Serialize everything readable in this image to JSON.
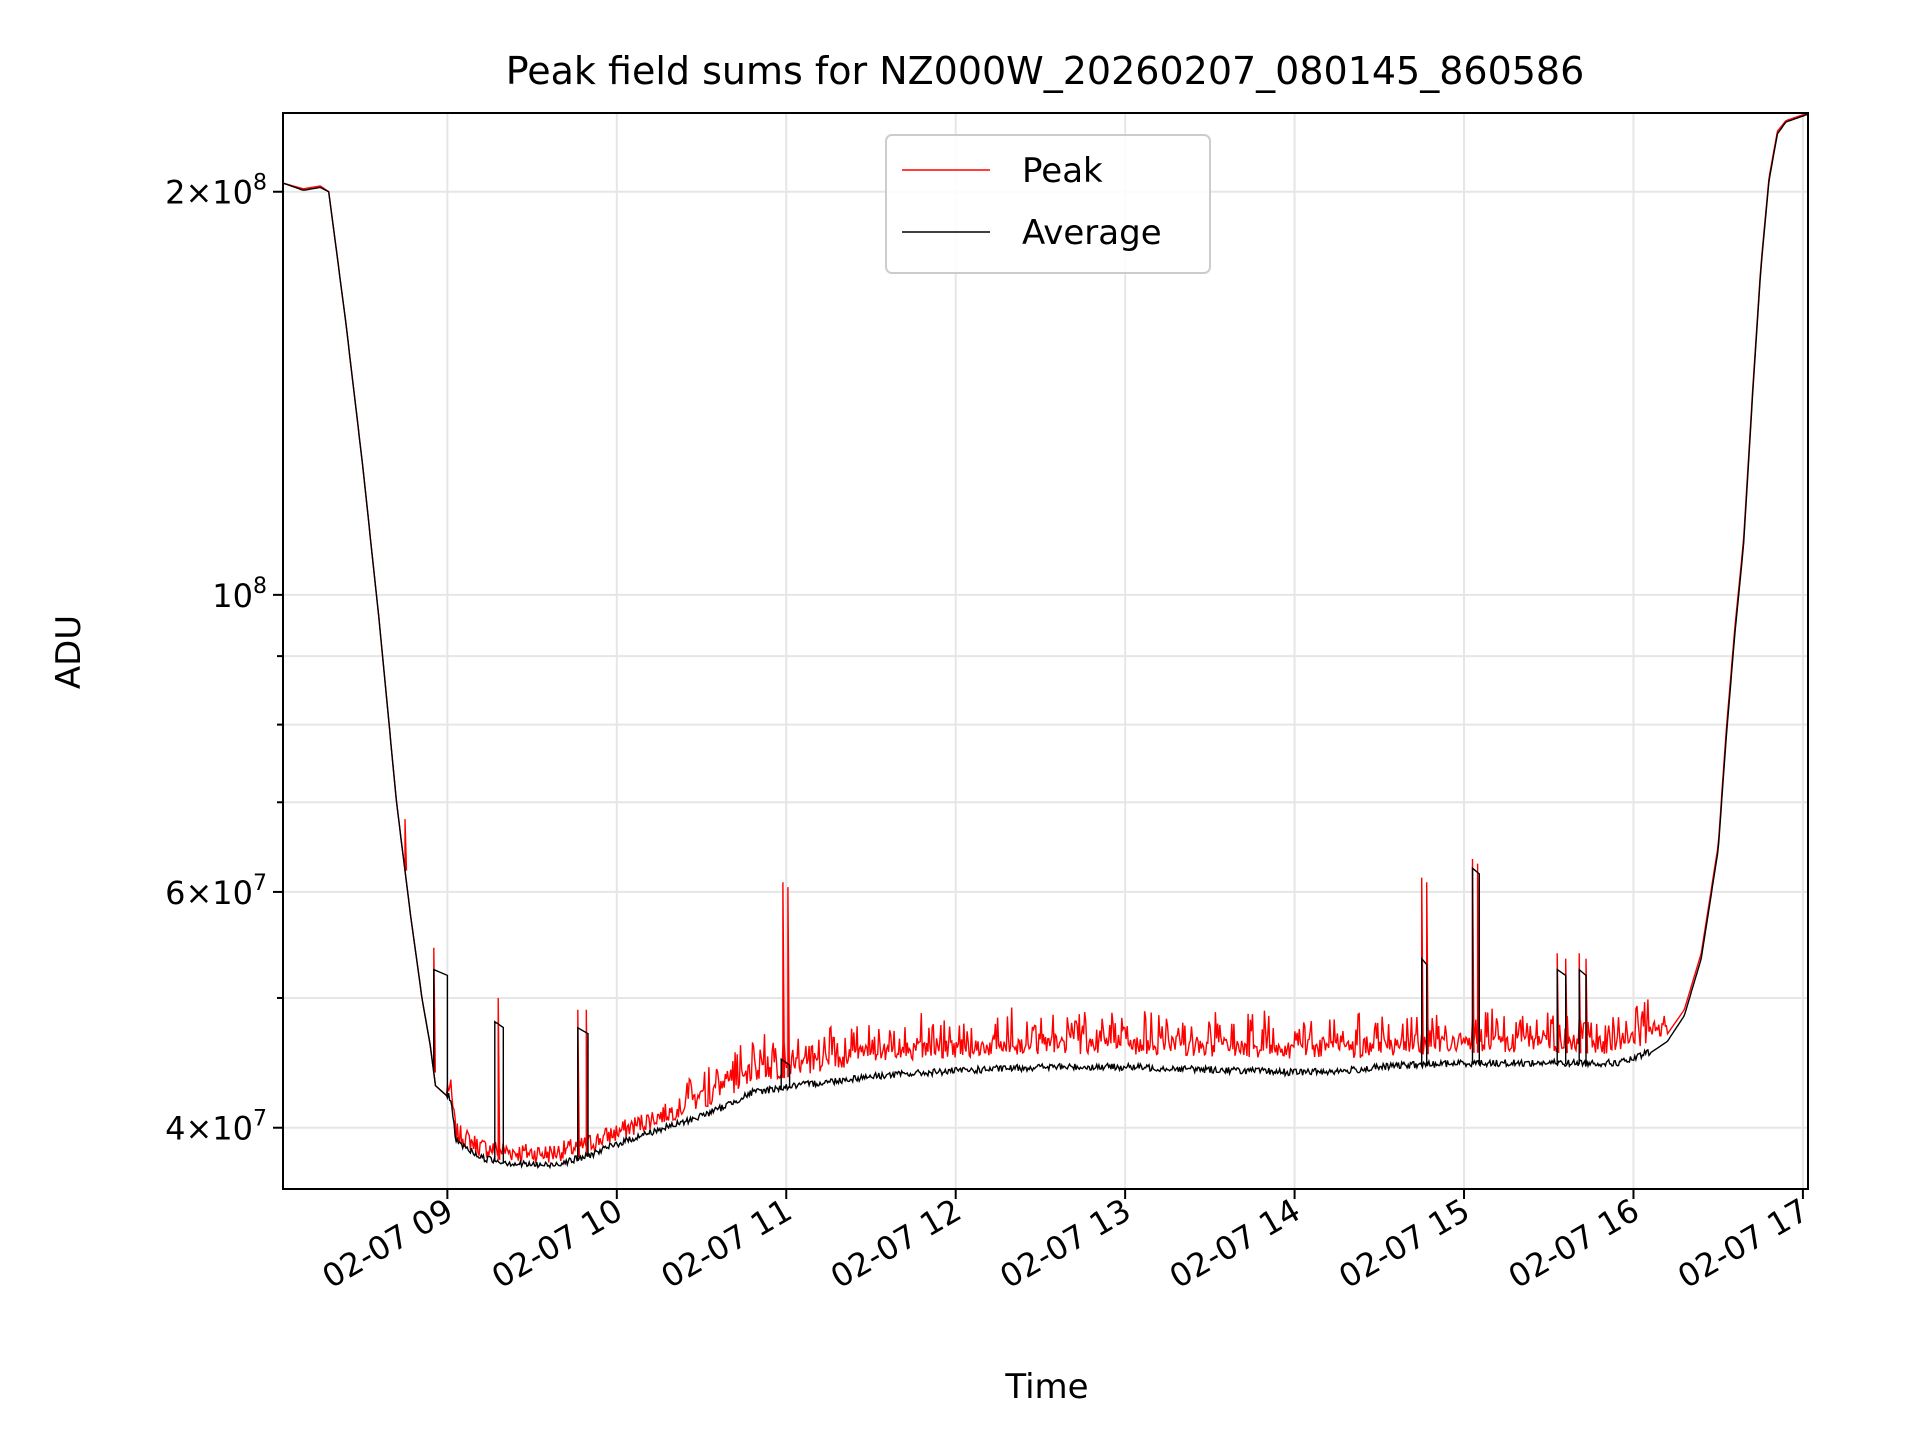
{
  "chart_data": {
    "type": "line",
    "title": "Peak field sums for NZ000W_20260207_080145_860586",
    "xlabel": "Time",
    "ylabel": "ADU",
    "yscale": "log",
    "grid": true,
    "legend_position": "top-center",
    "xlim": [
      8.03,
      17.03
    ],
    "ylim": [
      36000000,
      229000000
    ],
    "x_ticks": [
      {
        "value": 9,
        "label": "02-07 09"
      },
      {
        "value": 10,
        "label": "02-07 10"
      },
      {
        "value": 11,
        "label": "02-07 11"
      },
      {
        "value": 12,
        "label": "02-07 12"
      },
      {
        "value": 13,
        "label": "02-07 13"
      },
      {
        "value": 14,
        "label": "02-07 14"
      },
      {
        "value": 15,
        "label": "02-07 15"
      },
      {
        "value": 16,
        "label": "02-07 16"
      },
      {
        "value": 17,
        "label": "02-07 17"
      }
    ],
    "y_major_ticks": [
      {
        "value": 40000000,
        "base": "4",
        "exp": "7"
      },
      {
        "value": 60000000,
        "base": "6",
        "exp": "7"
      },
      {
        "value": 100000000,
        "base": "",
        "exp": "8"
      },
      {
        "value": 200000000,
        "base": "2",
        "exp": "8"
      }
    ],
    "y_minor_ticks": [
      50000000,
      70000000,
      80000000,
      90000000
    ],
    "series": [
      {
        "name": "Peak",
        "color": "#ff0000",
        "baseline": [
          [
            8.03,
            203000000
          ],
          [
            8.15,
            201000000
          ],
          [
            8.25,
            202000000
          ],
          [
            8.3,
            200000000
          ],
          [
            8.4,
            160000000
          ],
          [
            8.5,
            125000000
          ],
          [
            8.6,
            95000000
          ],
          [
            8.7,
            70000000
          ],
          [
            8.78,
            58000000
          ],
          [
            8.85,
            50000000
          ],
          [
            8.9,
            46000000
          ],
          [
            8.93,
            43000000
          ],
          [
            9.02,
            42000000
          ],
          [
            9.05,
            39000000
          ],
          [
            9.2,
            38000000
          ],
          [
            9.4,
            37700000
          ],
          [
            9.6,
            37600000
          ],
          [
            9.8,
            38100000
          ],
          [
            10.0,
            39000000
          ],
          [
            10.2,
            39900000
          ],
          [
            10.4,
            40800000
          ],
          [
            10.6,
            41800000
          ],
          [
            10.8,
            43200000
          ],
          [
            11.0,
            43600000
          ],
          [
            11.5,
            44700000
          ],
          [
            12.0,
            45100000
          ],
          [
            12.5,
            45400000
          ],
          [
            13.0,
            45400000
          ],
          [
            13.5,
            45200000
          ],
          [
            14.0,
            45000000
          ],
          [
            14.3,
            45000000
          ],
          [
            14.6,
            45300000
          ],
          [
            15.0,
            45500000
          ],
          [
            15.5,
            45500000
          ],
          [
            15.9,
            45400000
          ],
          [
            16.0,
            45700000
          ],
          [
            16.1,
            46200000
          ],
          [
            16.2,
            47000000
          ],
          [
            16.3,
            49000000
          ],
          [
            16.4,
            54000000
          ],
          [
            16.5,
            65000000
          ],
          [
            16.55,
            80000000
          ],
          [
            16.6,
            95000000
          ],
          [
            16.65,
            110000000
          ],
          [
            16.7,
            140000000
          ],
          [
            16.75,
            175000000
          ],
          [
            16.8,
            205000000
          ],
          [
            16.85,
            222000000
          ],
          [
            16.9,
            226000000
          ],
          [
            17.03,
            229000000
          ]
        ],
        "spikes": [
          [
            8.75,
            68000000
          ],
          [
            8.92,
            54500000
          ],
          [
            9.3,
            50000000
          ],
          [
            9.77,
            49000000
          ],
          [
            9.82,
            49000000
          ],
          [
            10.98,
            61000000
          ],
          [
            11.01,
            60500000
          ],
          [
            14.75,
            61500000
          ],
          [
            14.78,
            61000000
          ],
          [
            15.05,
            63500000
          ],
          [
            15.08,
            63000000
          ],
          [
            15.55,
            54000000
          ],
          [
            15.6,
            53500000
          ],
          [
            15.68,
            54000000
          ],
          [
            15.72,
            53500000
          ]
        ]
      },
      {
        "name": "Average",
        "color": "#000000",
        "baseline": [
          [
            8.03,
            203000000
          ],
          [
            8.15,
            200500000
          ],
          [
            8.25,
            201500000
          ],
          [
            8.3,
            200000000
          ],
          [
            8.4,
            160000000
          ],
          [
            8.5,
            125000000
          ],
          [
            8.6,
            95000000
          ],
          [
            8.7,
            70000000
          ],
          [
            8.78,
            58000000
          ],
          [
            8.85,
            50000000
          ],
          [
            8.9,
            46000000
          ],
          [
            8.93,
            43000000
          ],
          [
            9.02,
            42000000
          ],
          [
            9.05,
            39000000
          ],
          [
            9.2,
            37900000
          ],
          [
            9.4,
            37500000
          ],
          [
            9.6,
            37400000
          ],
          [
            9.8,
            37900000
          ],
          [
            10.0,
            38800000
          ],
          [
            10.2,
            39600000
          ],
          [
            10.4,
            40300000
          ],
          [
            10.6,
            41200000
          ],
          [
            10.8,
            42400000
          ],
          [
            11.0,
            42800000
          ],
          [
            11.5,
            43600000
          ],
          [
            12.0,
            44000000
          ],
          [
            12.5,
            44300000
          ],
          [
            13.0,
            44300000
          ],
          [
            13.5,
            44100000
          ],
          [
            14.0,
            43900000
          ],
          [
            14.3,
            44000000
          ],
          [
            14.6,
            44400000
          ],
          [
            15.0,
            44600000
          ],
          [
            15.5,
            44600000
          ],
          [
            15.9,
            44600000
          ],
          [
            16.0,
            44900000
          ],
          [
            16.1,
            45500000
          ],
          [
            16.2,
            46400000
          ],
          [
            16.3,
            48500000
          ],
          [
            16.4,
            53500000
          ],
          [
            16.5,
            64500000
          ],
          [
            16.55,
            79000000
          ],
          [
            16.6,
            94000000
          ],
          [
            16.65,
            109000000
          ],
          [
            16.7,
            139000000
          ],
          [
            16.75,
            174000000
          ],
          [
            16.8,
            204000000
          ],
          [
            16.85,
            221000000
          ],
          [
            16.9,
            225500000
          ],
          [
            17.03,
            228500000
          ]
        ],
        "plateaus": [
          [
            8.92,
            9.0,
            52500000
          ],
          [
            9.28,
            9.33,
            48000000
          ],
          [
            9.77,
            9.83,
            47500000
          ],
          [
            10.97,
            11.02,
            45000000
          ],
          [
            14.75,
            14.78,
            53500000
          ],
          [
            15.05,
            15.09,
            62500000
          ],
          [
            15.55,
            15.6,
            52500000
          ],
          [
            15.68,
            15.72,
            52500000
          ]
        ]
      }
    ]
  }
}
